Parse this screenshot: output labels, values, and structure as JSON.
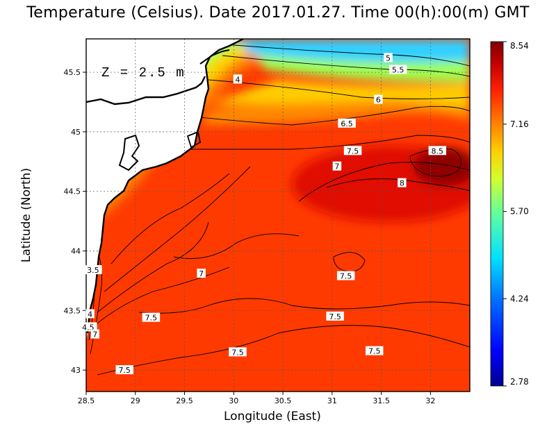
{
  "title": "Temperature (Celsius). Date 2017.01.27. Time 00(h):00(m)  GMT",
  "depth_label": "Z = 2.5 m",
  "x_axis": {
    "label": "Longitude (East)",
    "range": [
      28.5,
      32.4
    ],
    "ticks": [
      "28.5",
      "29",
      "29.5",
      "30",
      "30.5",
      "31",
      "31.5",
      "32"
    ],
    "tick_values": [
      28.5,
      29,
      29.5,
      30,
      30.5,
      31,
      31.5,
      32
    ]
  },
  "y_axis": {
    "label": "Latitude (North)",
    "range": [
      42.82,
      45.78
    ],
    "ticks": [
      "43",
      "43.5",
      "44",
      "44.5",
      "45",
      "45.5"
    ],
    "tick_values": [
      43,
      43.5,
      44,
      44.5,
      45,
      45.5
    ]
  },
  "grid": true,
  "colorbar": {
    "range": [
      2.78,
      8.54
    ],
    "tick_labels": [
      "8.54",
      "7.16",
      "5.70",
      "4.24",
      "2.78"
    ],
    "tick_values": [
      8.54,
      7.16,
      5.7,
      4.24,
      2.78
    ],
    "colormap": [
      "#00008f",
      "#0000ff",
      "#0070ff",
      "#00e0ff",
      "#60ff9f",
      "#d0ff30",
      "#ffd000",
      "#ff7000",
      "#ff2000",
      "#c00000",
      "#7f0000"
    ]
  },
  "contour_labels": [
    {
      "text": "5",
      "lon": 31.57,
      "lat": 45.62
    },
    {
      "text": "5.5",
      "lon": 31.67,
      "lat": 45.52
    },
    {
      "text": "6",
      "lon": 31.47,
      "lat": 45.27
    },
    {
      "text": "6.5",
      "lon": 31.15,
      "lat": 45.07
    },
    {
      "text": "7.5",
      "lon": 31.21,
      "lat": 44.84
    },
    {
      "text": "7",
      "lon": 31.05,
      "lat": 44.71
    },
    {
      "text": "8.5",
      "lon": 32.07,
      "lat": 44.84
    },
    {
      "text": "8",
      "lon": 31.71,
      "lat": 44.57
    },
    {
      "text": "4",
      "lon": 30.04,
      "lat": 45.44
    },
    {
      "text": "7",
      "lon": 29.67,
      "lat": 43.81
    },
    {
      "text": "3.5",
      "lon": 28.57,
      "lat": 43.84
    },
    {
      "text": "7.5",
      "lon": 31.14,
      "lat": 43.79
    },
    {
      "text": "7.5",
      "lon": 29.16,
      "lat": 43.44
    },
    {
      "text": "7.5",
      "lon": 31.03,
      "lat": 43.45
    },
    {
      "text": "4",
      "lon": 28.54,
      "lat": 43.47
    },
    {
      "text": "4.5",
      "lon": 28.52,
      "lat": 43.36
    },
    {
      "text": "7",
      "lon": 28.59,
      "lat": 43.3
    },
    {
      "text": "7.5",
      "lon": 30.04,
      "lat": 43.15
    },
    {
      "text": "7.5",
      "lon": 31.43,
      "lat": 43.16
    },
    {
      "text": "7.5",
      "lon": 28.89,
      "lat": 43.0
    }
  ]
}
